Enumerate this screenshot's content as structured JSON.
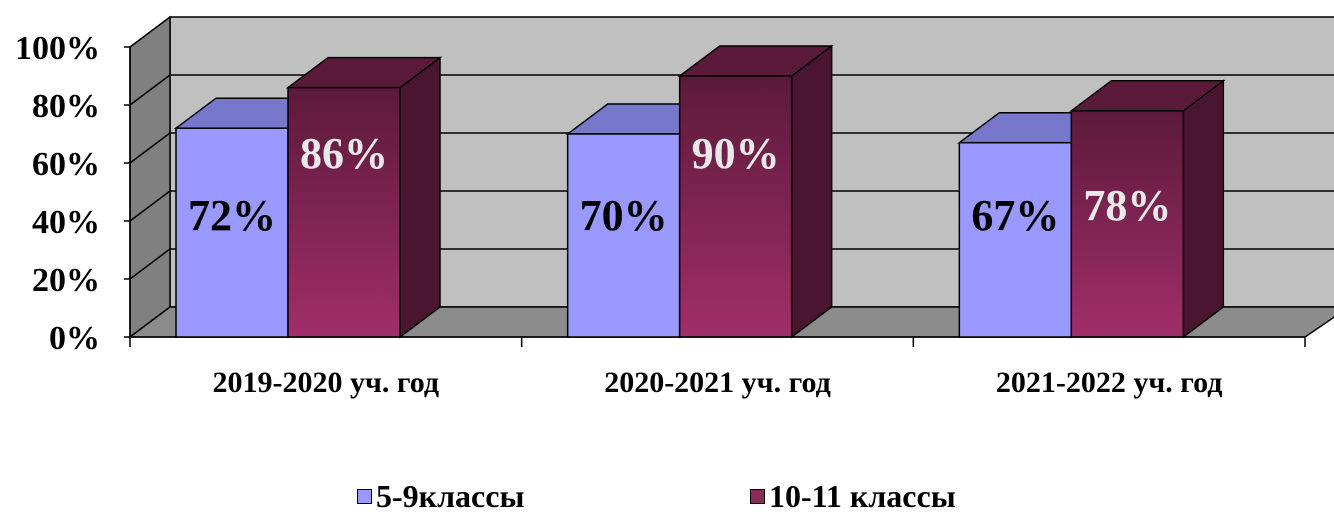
{
  "chart_data": {
    "type": "bar",
    "categories": [
      "2019-2020 уч. год",
      "2020-2021 уч. год",
      "2021-2022 уч. год"
    ],
    "series": [
      {
        "name": "5-9классы",
        "values": [
          72,
          70,
          67
        ],
        "labels": [
          "72%",
          "70%",
          "67%"
        ],
        "color": "#9999ff",
        "top_color": "#7777cc",
        "side_color": "#6f6fbf",
        "label_color": "#000000"
      },
      {
        "name": "10-11 классы",
        "values": [
          86,
          90,
          78
        ],
        "labels": [
          "86%",
          "90%",
          "78%"
        ],
        "color": "#993366",
        "top_color": "#5c1a3a",
        "side_color": "#4a1530",
        "label_color": "#e9e9e9"
      }
    ],
    "ylim": [
      0,
      100
    ],
    "yticks": [
      "0%",
      "20%",
      "40%",
      "60%",
      "80%",
      "100%"
    ],
    "ylabel": "",
    "xlabel": "",
    "grid": true,
    "legend": "bottom",
    "view": "3d-column"
  }
}
